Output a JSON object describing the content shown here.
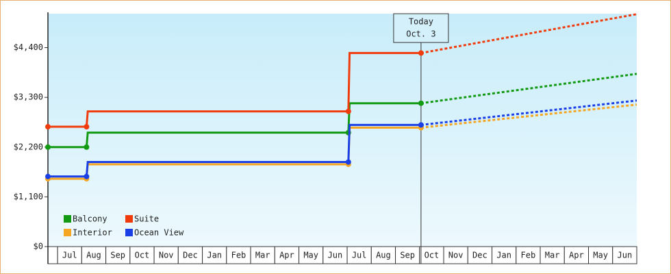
{
  "chart_data": {
    "type": "step-line",
    "categories": [
      null,
      "Jul",
      "Aug",
      "Sep",
      "Oct",
      "Nov",
      "Dec",
      "Jan",
      "Feb",
      "Mar",
      "Apr",
      "May",
      "Jun",
      "Jul",
      "Aug",
      "Sep",
      "Oct",
      "Nov",
      "Dec",
      "Jan",
      "Feb",
      "Mar",
      "Apr",
      "May",
      "Jun"
    ],
    "xlim": [
      0,
      24.4
    ],
    "x": [
      0,
      1.6,
      1.65,
      12.45,
      12.5,
      15.46
    ],
    "forecast_x": [
      15.46,
      24.4
    ],
    "ylim": [
      0,
      5150
    ],
    "yticks": [
      {
        "value": 0,
        "label": "$0"
      },
      {
        "value": 1100,
        "label": "$1,100"
      },
      {
        "value": 2200,
        "label": "$2,200"
      },
      {
        "value": 3300,
        "label": "$3,300"
      },
      {
        "value": 4400,
        "label": "$4,400"
      }
    ],
    "annotation": {
      "x": 15.46,
      "lines": [
        "Today",
        "Oct. 3"
      ]
    },
    "legend": "lower-left",
    "series": [
      {
        "name": "Balcony",
        "color": "#129a12",
        "values": [
          2200,
          2200,
          2520,
          2520,
          3170,
          3170
        ],
        "forecast_values": [
          3170,
          3820
        ]
      },
      {
        "name": "Suite",
        "color": "#f03c0c",
        "values": [
          2650,
          2650,
          2990,
          2990,
          4280,
          4280
        ],
        "forecast_values": [
          4280,
          5140
        ]
      },
      {
        "name": "Interior",
        "color": "#f5a623",
        "values": [
          1500,
          1500,
          1820,
          1820,
          2630,
          2630
        ],
        "forecast_values": [
          2630,
          3140
        ]
      },
      {
        "name": "Ocean View",
        "color": "#1a3fe6",
        "values": [
          1550,
          1550,
          1870,
          1870,
          2690,
          2690
        ],
        "forecast_values": [
          2690,
          3230
        ]
      }
    ]
  }
}
